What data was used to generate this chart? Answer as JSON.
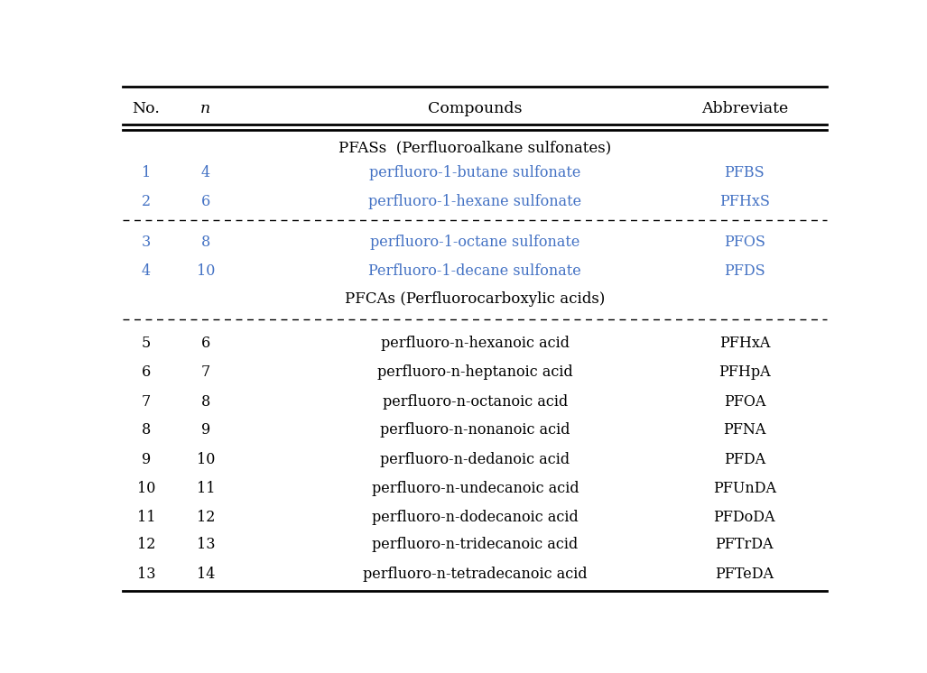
{
  "header_cols": [
    "No.",
    "n",
    "Compounds",
    "Abbreviate"
  ],
  "group1_header": "PFASs  (Perfluoroalkane sulfonates)",
  "group2_header": "PFCAs (Perfluorocarboxylic acids)",
  "rows": [
    {
      "no": "1",
      "n": "4",
      "compound": "perfluoro-1-butane sulfonate",
      "abbr": "PFBS",
      "color": "#4472C4",
      "group": 1
    },
    {
      "no": "2",
      "n": "6",
      "compound": "perfluoro-1-hexane sulfonate",
      "abbr": "PFHxS",
      "color": "#4472C4",
      "group": 1
    },
    {
      "no": "3",
      "n": "8",
      "compound": "perfluoro-1-octane sulfonate",
      "abbr": "PFOS",
      "color": "#4472C4",
      "group": 1
    },
    {
      "no": "4",
      "n": "10",
      "compound": "Perfluoro-1-decane sulfonate",
      "abbr": "PFDS",
      "color": "#4472C4",
      "group": 1
    },
    {
      "no": "5",
      "n": "6",
      "compound": "perfluoro-n-hexanoic acid",
      "abbr": "PFHxA",
      "color": "#000000",
      "group": 2
    },
    {
      "no": "6",
      "n": "7",
      "compound": "perfluoro-n-heptanoic acid",
      "abbr": "PFHpA",
      "color": "#000000",
      "group": 2
    },
    {
      "no": "7",
      "n": "8",
      "compound": "perfluoro-n-octanoic acid",
      "abbr": "PFOA",
      "color": "#000000",
      "group": 2
    },
    {
      "no": "8",
      "n": "9",
      "compound": "perfluoro-n-nonanoic acid",
      "abbr": "PFNA",
      "color": "#000000",
      "group": 2
    },
    {
      "no": "9",
      "n": "10",
      "compound": "perfluoro-n-dedanoic acid",
      "abbr": "PFDA",
      "color": "#000000",
      "group": 2
    },
    {
      "no": "10",
      "n": "11",
      "compound": "perfluoro-n-undecanoic acid",
      "abbr": "PFUnDA",
      "color": "#000000",
      "group": 2
    },
    {
      "no": "11",
      "n": "12",
      "compound": "perfluoro-n-dodecanoic acid",
      "abbr": "PFDoDA",
      "color": "#000000",
      "group": 2
    },
    {
      "no": "12",
      "n": "13",
      "compound": "perfluoro-n-tridecanoic acid",
      "abbr": "PFTrDA",
      "color": "#000000",
      "group": 2
    },
    {
      "no": "13",
      "n": "14",
      "compound": "perfluoro-n-tetradecanoic acid",
      "abbr": "PFTeDA",
      "color": "#000000",
      "group": 2
    }
  ],
  "blue_color": "#4472C4",
  "black_color": "#000000",
  "bg_color": "#FFFFFF",
  "font_size": 11.5,
  "header_font_size": 12.5,
  "group_header_font_size": 12.0,
  "col_no": 0.042,
  "col_n": 0.125,
  "col_comp": 0.5,
  "col_abbr": 0.875
}
